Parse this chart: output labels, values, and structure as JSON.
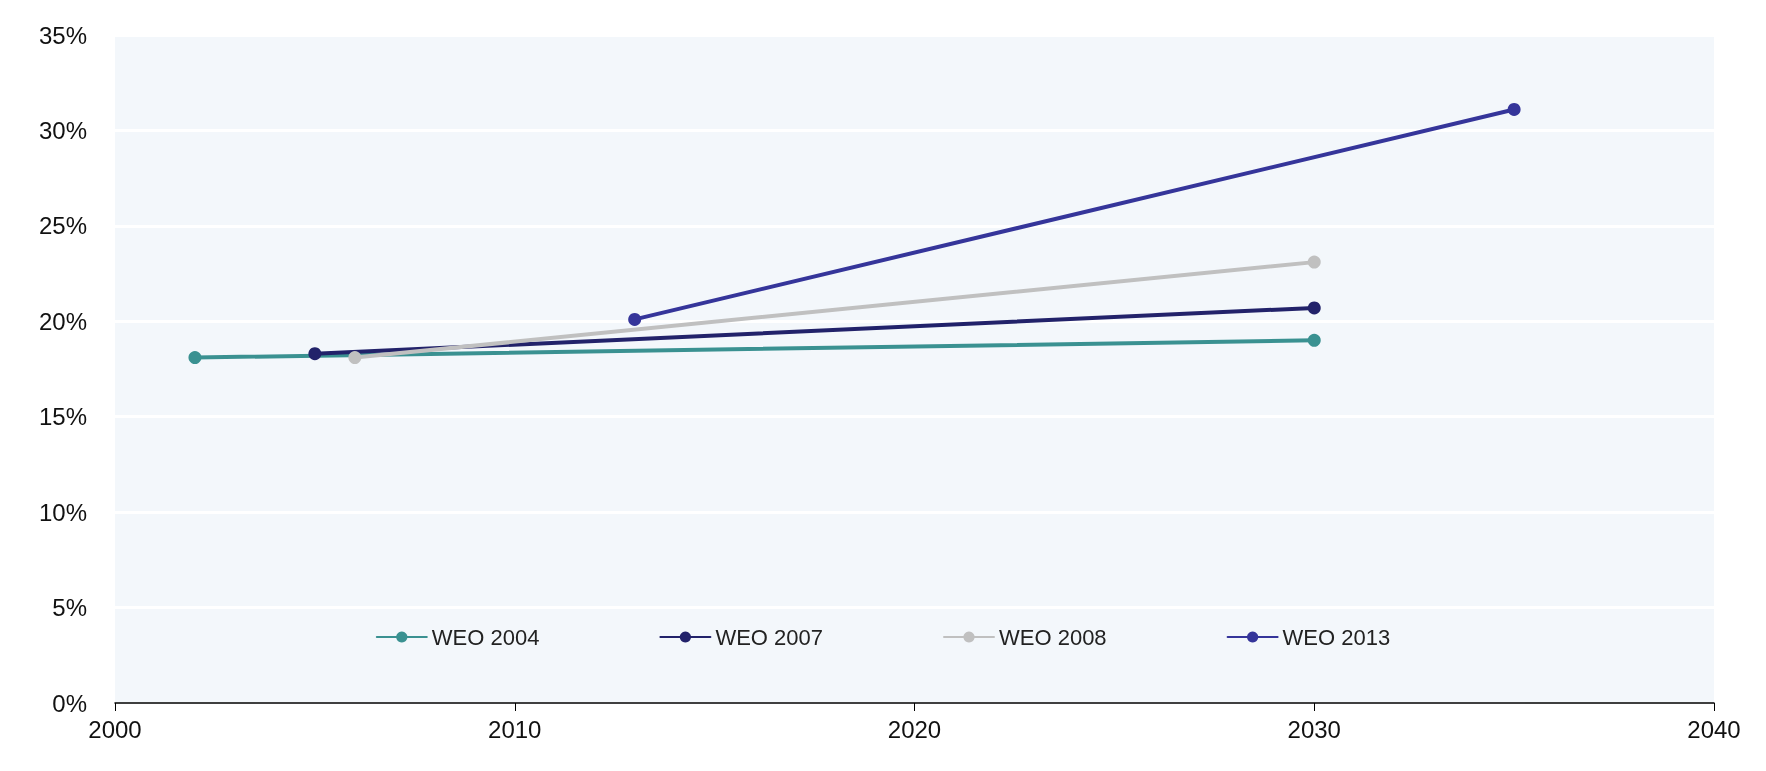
{
  "chart_data": {
    "type": "line",
    "xlim": [
      2000,
      2040
    ],
    "xticks": [
      2000,
      2010,
      2020,
      2030,
      2040
    ],
    "ylim": [
      0,
      35
    ],
    "yticks": [
      {
        "value": 0,
        "label": "0%"
      },
      {
        "value": 5,
        "label": "5%"
      },
      {
        "value": 10,
        "label": "10%"
      },
      {
        "value": 15,
        "label": "15%"
      },
      {
        "value": 20,
        "label": "20%"
      },
      {
        "value": 25,
        "label": "25%"
      },
      {
        "value": 30,
        "label": "30%"
      },
      {
        "value": 35,
        "label": "35%"
      }
    ],
    "grid": "y",
    "legend": "bottom",
    "marker": "circle",
    "line_style": "solid",
    "series": [
      {
        "name": "WEO 2004",
        "color": "#3a9191",
        "x": [
          2002,
          2030
        ],
        "values": [
          18.1,
          19.0
        ]
      },
      {
        "name": "WEO 2007",
        "color": "#22226a",
        "x": [
          2005,
          2030
        ],
        "values": [
          18.3,
          20.7
        ]
      },
      {
        "name": "WEO 2008",
        "color": "#c0c0c0",
        "x": [
          2006,
          2030
        ],
        "values": [
          18.1,
          23.1
        ]
      },
      {
        "name": "WEO 2013",
        "color": "#35359a",
        "x": [
          2013,
          2035
        ],
        "values": [
          20.1,
          31.1
        ]
      }
    ]
  }
}
